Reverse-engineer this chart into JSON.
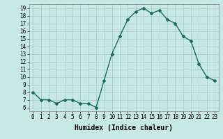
{
  "x": [
    0,
    1,
    2,
    3,
    4,
    5,
    6,
    7,
    8,
    9,
    10,
    11,
    12,
    13,
    14,
    15,
    16,
    17,
    18,
    19,
    20,
    21,
    22,
    23
  ],
  "y": [
    8,
    7,
    7,
    6.5,
    7,
    7,
    6.5,
    6.5,
    6,
    9.5,
    13,
    15.3,
    17.5,
    18.5,
    19,
    18.3,
    18.7,
    17.5,
    17,
    15.3,
    14.7,
    11.7,
    10,
    9.5
  ],
  "line_color": "#1a6b5a",
  "marker": "D",
  "marker_size": 2.0,
  "bg_color": "#c8e8e4",
  "grid_color": "#a0c8c8",
  "xlabel": "Humidex (Indice chaleur)",
  "xlim": [
    -0.5,
    23.5
  ],
  "ylim": [
    5.5,
    19.5
  ],
  "yticks": [
    6,
    7,
    8,
    9,
    10,
    11,
    12,
    13,
    14,
    15,
    16,
    17,
    18,
    19
  ],
  "xticks": [
    0,
    1,
    2,
    3,
    4,
    5,
    6,
    7,
    8,
    9,
    10,
    11,
    12,
    13,
    14,
    15,
    16,
    17,
    18,
    19,
    20,
    21,
    22,
    23
  ],
  "tick_fontsize": 5.5,
  "xlabel_fontsize": 7,
  "line_width": 1.0
}
